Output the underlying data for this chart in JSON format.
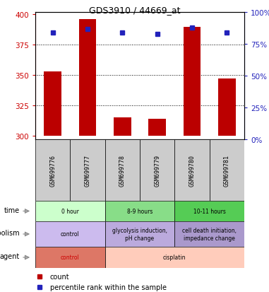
{
  "title": "GDS3910 / 44669_at",
  "samples": [
    "GSM699776",
    "GSM699777",
    "GSM699778",
    "GSM699779",
    "GSM699780",
    "GSM699781"
  ],
  "counts": [
    353,
    396,
    315,
    314,
    390,
    347
  ],
  "percentile_left_vals": [
    385,
    388,
    385,
    384,
    389,
    385
  ],
  "ylim_left": [
    297,
    402
  ],
  "ylim_right": [
    0,
    100
  ],
  "yticks_left": [
    300,
    325,
    350,
    375,
    400
  ],
  "yticks_right": [
    0,
    25,
    50,
    75,
    100
  ],
  "bar_color": "#bb0000",
  "dot_color": "#2222bb",
  "bar_bottom": 300,
  "time_groups": [
    {
      "label": "0 hour",
      "cols": [
        0,
        1
      ],
      "color": "#ccffcc"
    },
    {
      "label": "8-9 hours",
      "cols": [
        2,
        3
      ],
      "color": "#88dd88"
    },
    {
      "label": "10-11 hours",
      "cols": [
        4,
        5
      ],
      "color": "#55cc55"
    }
  ],
  "metabolism_groups": [
    {
      "label": "control",
      "cols": [
        0,
        1
      ],
      "color": "#ccbbee"
    },
    {
      "label": "glycolysis induction,\npH change",
      "cols": [
        2,
        3
      ],
      "color": "#bbaadd"
    },
    {
      "label": "cell death initiation,\nimpedance change",
      "cols": [
        4,
        5
      ],
      "color": "#aa99cc"
    }
  ],
  "agent_groups": [
    {
      "label": "control",
      "cols": [
        0,
        1
      ],
      "color": "#dd7766",
      "text_color": "#cc0000"
    },
    {
      "label": "cisplatin",
      "cols": [
        2,
        3,
        4,
        5
      ],
      "color": "#ffccbb",
      "text_color": "black"
    }
  ],
  "sample_bg_color": "#cccccc",
  "left_axis_color": "#cc0000",
  "right_axis_color": "#2222bb",
  "grid_yticks": [
    325,
    350,
    375
  ]
}
